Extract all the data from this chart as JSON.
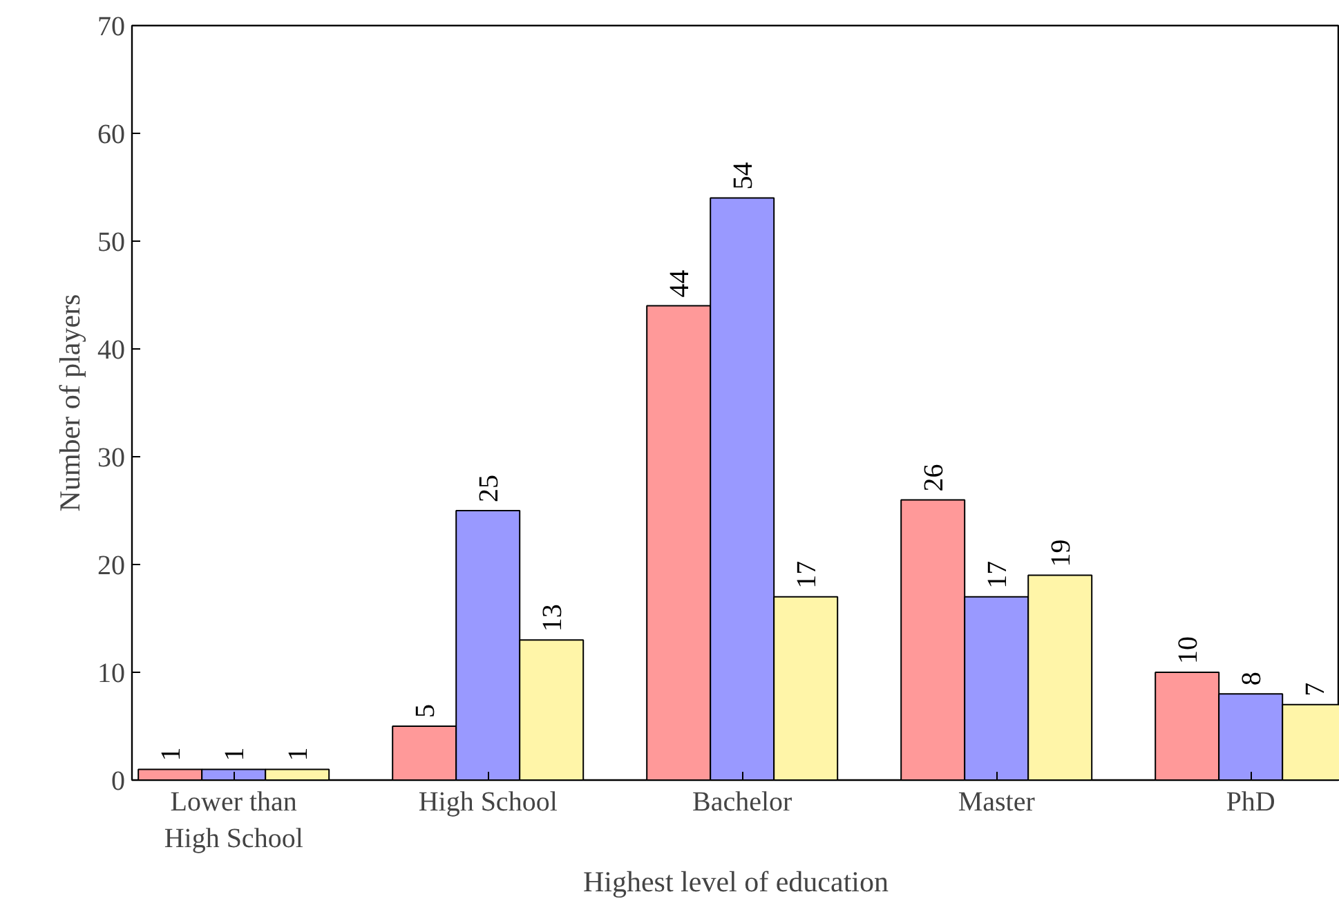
{
  "chart_data": {
    "type": "bar",
    "xlabel": "Highest level of education",
    "ylabel": "Number of players",
    "categories": [
      "Lower than\nHigh School",
      "High School",
      "Bachelor",
      "Master",
      "PhD"
    ],
    "series": [
      {
        "color": "#ff9999",
        "values": [
          1,
          5,
          44,
          26,
          10
        ]
      },
      {
        "color": "#9999ff",
        "values": [
          1,
          25,
          54,
          17,
          8
        ]
      },
      {
        "color": "#fff5a8",
        "values": [
          1,
          13,
          17,
          19,
          7
        ]
      }
    ],
    "ylim": [
      0,
      70
    ],
    "yticks": [
      0,
      10,
      20,
      30,
      40,
      50,
      60,
      70
    ],
    "grid": false,
    "data_labels": true
  }
}
